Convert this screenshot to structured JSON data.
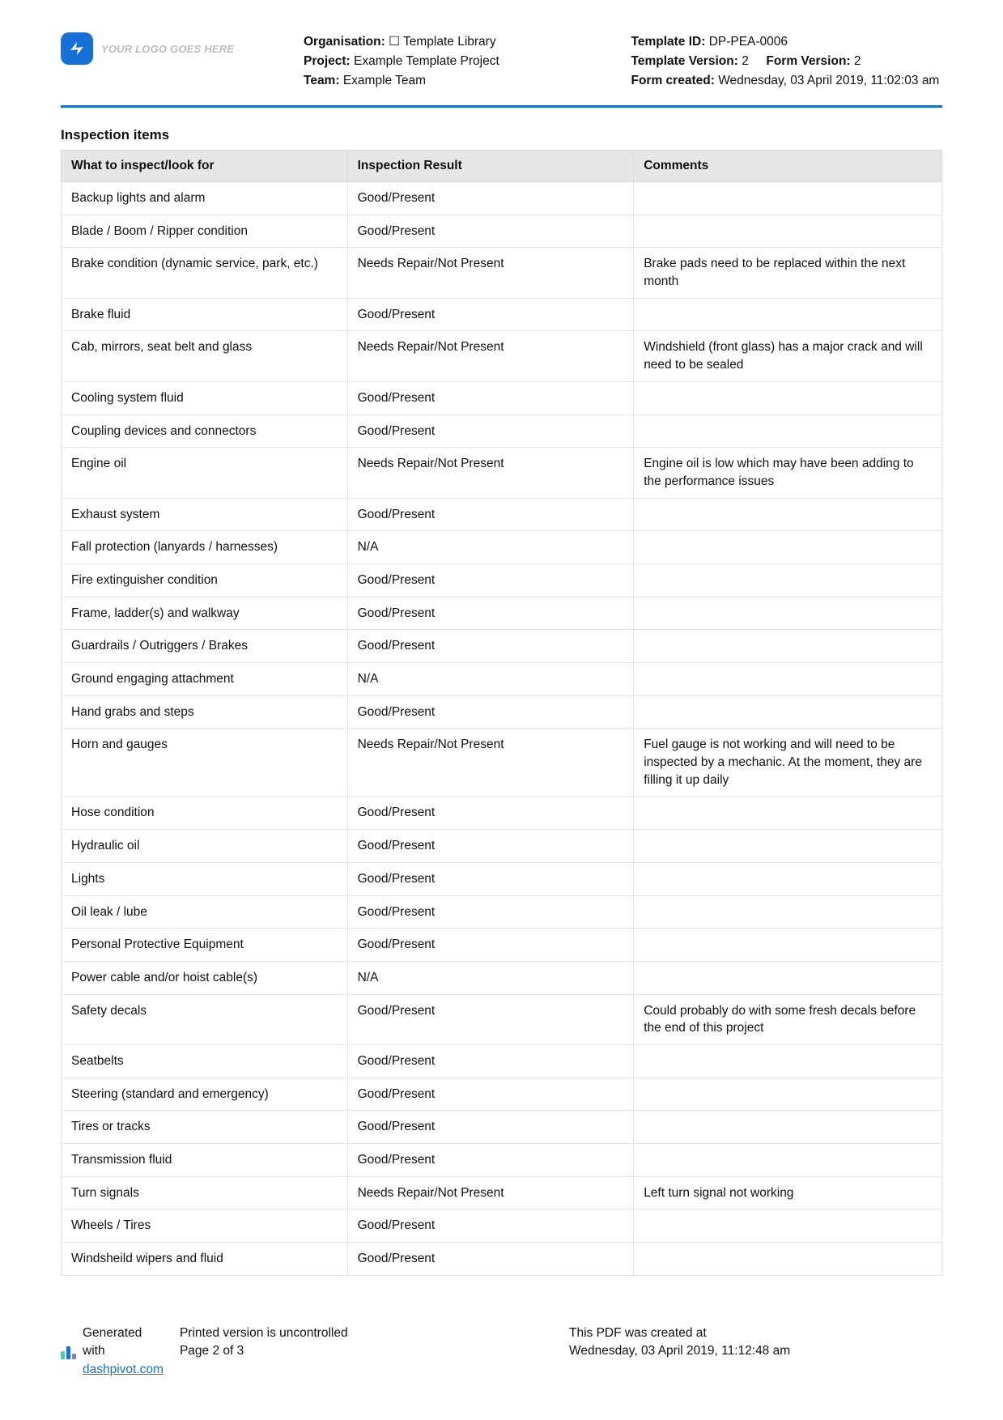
{
  "logo_placeholder": "YOUR LOGO GOES HERE",
  "header_left": {
    "org_label": "Organisation:",
    "org_value": "☐ Template Library",
    "project_label": "Project:",
    "project_value": "Example Template Project",
    "team_label": "Team:",
    "team_value": "Example Team"
  },
  "header_right": {
    "template_id_label": "Template ID:",
    "template_id_value": "DP-PEA-0006",
    "template_version_label": "Template Version:",
    "template_version_value": "2",
    "form_version_label": "Form Version:",
    "form_version_value": "2",
    "form_created_label": "Form created:",
    "form_created_value": "Wednesday, 03 April 2019, 11:02:03 am"
  },
  "section_title": "Inspection items",
  "columns": [
    "What to inspect/look for",
    "Inspection Result",
    "Comments"
  ],
  "rows": [
    [
      "Backup lights and alarm",
      "Good/Present",
      ""
    ],
    [
      "Blade / Boom / Ripper condition",
      "Good/Present",
      ""
    ],
    [
      "Brake condition (dynamic service, park, etc.)",
      "Needs Repair/Not Present",
      "Brake pads need to be replaced within the next month"
    ],
    [
      "Brake fluid",
      "Good/Present",
      ""
    ],
    [
      "Cab, mirrors, seat belt and glass",
      "Needs Repair/Not Present",
      "Windshield (front glass) has a major crack and will need to be sealed"
    ],
    [
      "Cooling system fluid",
      "Good/Present",
      ""
    ],
    [
      "Coupling devices and connectors",
      "Good/Present",
      ""
    ],
    [
      "Engine oil",
      "Needs Repair/Not Present",
      "Engine oil is low which may have been adding to the performance issues"
    ],
    [
      "Exhaust system",
      "Good/Present",
      ""
    ],
    [
      "Fall protection (lanyards / harnesses)",
      "N/A",
      ""
    ],
    [
      "Fire extinguisher condition",
      "Good/Present",
      ""
    ],
    [
      "Frame, ladder(s) and walkway",
      "Good/Present",
      ""
    ],
    [
      "Guardrails / Outriggers / Brakes",
      "Good/Present",
      ""
    ],
    [
      "Ground engaging attachment",
      "N/A",
      ""
    ],
    [
      "Hand grabs and steps",
      "Good/Present",
      ""
    ],
    [
      "Horn and gauges",
      "Needs Repair/Not Present",
      "Fuel gauge is not working and will need to be inspected by a mechanic. At the moment, they are filling it up daily"
    ],
    [
      "Hose condition",
      "Good/Present",
      ""
    ],
    [
      "Hydraulic oil",
      "Good/Present",
      ""
    ],
    [
      "Lights",
      "Good/Present",
      ""
    ],
    [
      "Oil leak / lube",
      "Good/Present",
      ""
    ],
    [
      "Personal Protective Equipment",
      "Good/Present",
      ""
    ],
    [
      "Power cable and/or hoist cable(s)",
      "N/A",
      ""
    ],
    [
      "Safety decals",
      "Good/Present",
      "Could probably do with some fresh decals before the end of this project"
    ],
    [
      "Seatbelts",
      "Good/Present",
      ""
    ],
    [
      "Steering (standard and emergency)",
      "Good/Present",
      ""
    ],
    [
      "Tires or tracks",
      "Good/Present",
      ""
    ],
    [
      "Transmission fluid",
      "Good/Present",
      ""
    ],
    [
      "Turn signals",
      "Needs Repair/Not Present",
      "Left turn signal not working"
    ],
    [
      "Wheels / Tires",
      "Good/Present",
      ""
    ],
    [
      "Windsheild wipers and fluid",
      "Good/Present",
      ""
    ]
  ],
  "footer": {
    "generated_prefix": "Generated with ",
    "generated_link_text": "dashpivot.com",
    "uncontrolled": "Printed version is uncontrolled",
    "page_text": "Page 2 of 3",
    "created_label": "This PDF was created at",
    "created_value": "Wednesday, 03 April 2019, 11:12:48 am",
    "bar_colors": [
      "#3bd6b0",
      "#1770d6",
      "#7b8aa0"
    ]
  }
}
